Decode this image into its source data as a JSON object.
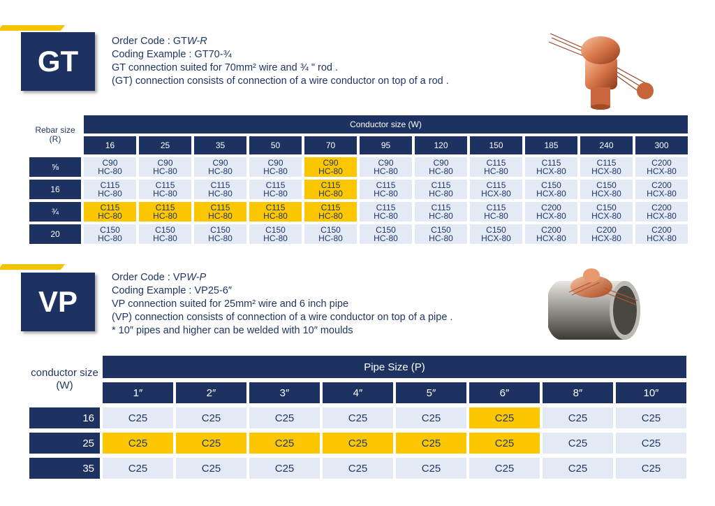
{
  "gt": {
    "badge": "GT",
    "order_code_prefix": "Order Code : GT",
    "order_code_suffix": "W-R",
    "coding_example": "Coding Example : GT70-¾",
    "line3": "GT connection suited for 70mm² wire and ¾ \" rod .",
    "line4": "(GT) connection consists of connection of a wire conductor on top of a rod .",
    "table": {
      "rowhead": "Rebar size (R)",
      "span_header": "Conductor size (W)",
      "columns": [
        "16",
        "25",
        "35",
        "50",
        "70",
        "95",
        "120",
        "150",
        "185",
        "240",
        "300"
      ],
      "rows": [
        {
          "label": "⅝",
          "cells": [
            [
              "C90",
              "HC-80"
            ],
            [
              "C90",
              "HC-80"
            ],
            [
              "C90",
              "HC-80"
            ],
            [
              "C90",
              "HC-80"
            ],
            [
              "C90",
              "HC-80"
            ],
            [
              "C90",
              "HC-80"
            ],
            [
              "C90",
              "HC-80"
            ],
            [
              "C115",
              "HC-80"
            ],
            [
              "C115",
              "HCX-80"
            ],
            [
              "C115",
              "HCX-80"
            ],
            [
              "C200",
              "HCX-80"
            ]
          ],
          "highlight": [
            4
          ]
        },
        {
          "label": "16",
          "cells": [
            [
              "C115",
              "HC-80"
            ],
            [
              "C115",
              "HC-80"
            ],
            [
              "C115",
              "HC-80"
            ],
            [
              "C115",
              "HC-80"
            ],
            [
              "C115",
              "HC-80"
            ],
            [
              "C115",
              "HC-80"
            ],
            [
              "C115",
              "HC-80"
            ],
            [
              "C115",
              "HCX-80"
            ],
            [
              "C150",
              "HCX-80"
            ],
            [
              "C150",
              "HCX-80"
            ],
            [
              "C200",
              "HCX-80"
            ]
          ],
          "highlight": [
            4
          ]
        },
        {
          "label": "¾",
          "cells": [
            [
              "C115",
              "HC-80"
            ],
            [
              "C115",
              "HC-80"
            ],
            [
              "C115",
              "HC-80"
            ],
            [
              "C115",
              "HC-80"
            ],
            [
              "C115",
              "HC-80"
            ],
            [
              "C115",
              "HC-80"
            ],
            [
              "C115",
              "HC-80"
            ],
            [
              "C115",
              "HC-80"
            ],
            [
              "C200",
              "HCX-80"
            ],
            [
              "C150",
              "HCX-80"
            ],
            [
              "C200",
              "HCX-80"
            ]
          ],
          "highlight": [
            0,
            1,
            2,
            3,
            4
          ]
        },
        {
          "label": "20",
          "cells": [
            [
              "C150",
              "HC-80"
            ],
            [
              "C150",
              "HC-80"
            ],
            [
              "C150",
              "HC-80"
            ],
            [
              "C150",
              "HC-80"
            ],
            [
              "C150",
              "HC-80"
            ],
            [
              "C150",
              "HC-80"
            ],
            [
              "C150",
              "HC-80"
            ],
            [
              "C150",
              "HCX-80"
            ],
            [
              "C200",
              "HCX-80"
            ],
            [
              "C200",
              "HCX-80"
            ],
            [
              "C200",
              "HCX-80"
            ]
          ],
          "highlight": []
        }
      ]
    }
  },
  "vp": {
    "badge": "VP",
    "order_code_prefix": "Order Code : VP",
    "order_code_suffix": "W-P",
    "coding_example": "Coding Example : VP25-6″",
    "line3": "VP connection suited for 25mm² wire and 6 inch pipe",
    "line4": "(VP) connection consists of connection of a wire conductor on top of a pipe .",
    "line5": "* 10″ pipes and higher can be welded with 10″ moulds",
    "table": {
      "rowhead": "conductor size (W)",
      "span_header": "Pipe Size (P)",
      "columns": [
        "1″",
        "2″",
        "3″",
        "4″",
        "5″",
        "6″",
        "8″",
        "10″"
      ],
      "rows": [
        {
          "label": "16",
          "cells": [
            "C25",
            "C25",
            "C25",
            "C25",
            "C25",
            "C25",
            "C25",
            "C25"
          ],
          "highlight": [
            5
          ]
        },
        {
          "label": "25",
          "cells": [
            "C25",
            "C25",
            "C25",
            "C25",
            "C25",
            "C25",
            "C25",
            "C25"
          ],
          "highlight": [
            0,
            1,
            2,
            3,
            4,
            5
          ]
        },
        {
          "label": "35",
          "cells": [
            "C25",
            "C25",
            "C25",
            "C25",
            "C25",
            "C25",
            "C25",
            "C25"
          ],
          "highlight": []
        }
      ]
    }
  },
  "colors": {
    "navy": "#1d3261",
    "highlight": "#fdc700",
    "cell": "#e3eaf6",
    "accent": "#f5c400",
    "copper": "#d9774a"
  }
}
